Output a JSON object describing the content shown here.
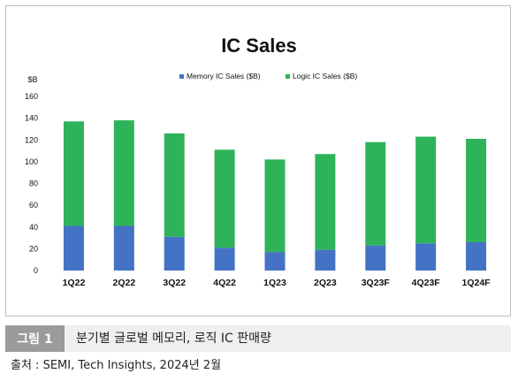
{
  "chart_data": {
    "type": "bar",
    "stacked": true,
    "title": "IC Sales",
    "ylabel": "$B",
    "ylim": [
      0,
      160
    ],
    "yticks": [
      0,
      20,
      40,
      60,
      80,
      100,
      120,
      140,
      160
    ],
    "grid": false,
    "legend_position": "top-center",
    "categories": [
      "1Q22",
      "2Q22",
      "3Q22",
      "4Q22",
      "1Q23",
      "2Q23",
      "3Q23F",
      "4Q23F",
      "1Q24F"
    ],
    "series": [
      {
        "name": "Memory IC Sales ($B)",
        "color": "#4472c4",
        "values": [
          41,
          41,
          31,
          21,
          17,
          19,
          23,
          25,
          26
        ]
      },
      {
        "name": "Logic IC Sales ($B)",
        "color": "#2fb35a",
        "values": [
          96,
          97,
          95,
          90,
          85,
          88,
          95,
          98,
          95
        ]
      }
    ]
  },
  "caption": {
    "label": "그림 1",
    "text": "분기별 글로벌 메모리, 로직 IC 판매량"
  },
  "source": "출처 : SEMI, Tech Insights, 2024년 2월"
}
